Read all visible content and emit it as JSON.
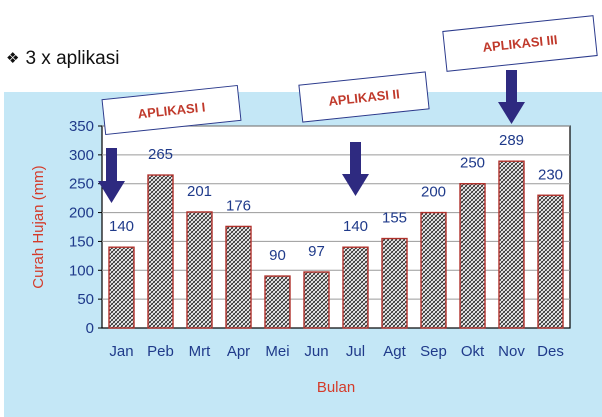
{
  "heading": {
    "bullet_icon": "diamond-bullet-icon",
    "bullet_glyph": "❖",
    "text": "3 x aplikasi"
  },
  "callouts": [
    {
      "label": "APLIKASI I",
      "month": "Jan"
    },
    {
      "label": "APLIKASI II",
      "month": "Jul"
    },
    {
      "label": "APLIKASI III",
      "month": "Nov"
    }
  ],
  "colors": {
    "panel_bg": "#c4e7f6",
    "bar_stroke": "#b0312b",
    "label_blue": "#1f3a8a",
    "axis_title_red": "#d43b2a",
    "arrow": "#2e2a80",
    "callout_text": "#c0392b"
  },
  "chart_data": {
    "type": "bar",
    "categories": [
      "Jan",
      "Peb",
      "Mrt",
      "Apr",
      "Mei",
      "Jun",
      "Jul",
      "Agt",
      "Sep",
      "Okt",
      "Nov",
      "Des"
    ],
    "values": [
      140,
      265,
      201,
      176,
      90,
      97,
      140,
      155,
      200,
      250,
      289,
      230
    ],
    "data_labels": [
      "140",
      "265",
      "201",
      "176",
      "90",
      "97",
      "140",
      "155",
      "200",
      "250",
      "289",
      "230"
    ],
    "xlabel": "Bulan",
    "ylabel": "Curah Hujan (mm)",
    "ylim": [
      0,
      350
    ],
    "yticks": [
      0,
      50,
      100,
      150,
      200,
      250,
      300,
      350
    ],
    "grid": true,
    "legend": "none",
    "bar_fill": "diagonal crosshatch"
  }
}
